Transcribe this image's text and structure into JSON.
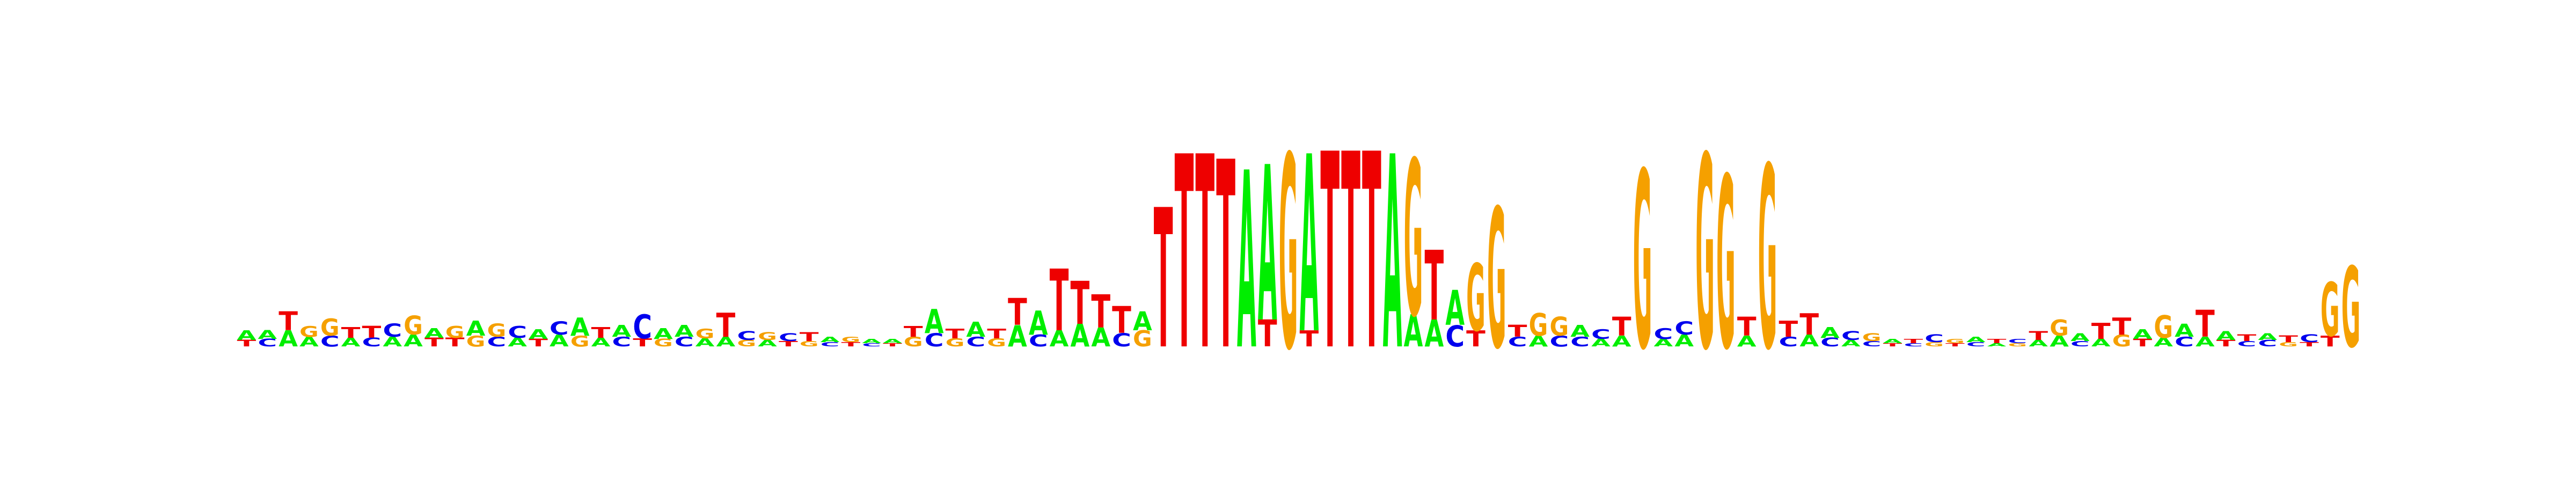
{
  "colors": {
    "A": "#00ee00",
    "C": "#0000ee",
    "G": "#f5a000",
    "T": "#ee0000"
  },
  "sequence_logo": {
    "columns": [
      [
        [
          "A",
          0.18
        ],
        [
          "T",
          0.12
        ]
      ],
      [
        [
          "A",
          0.16
        ],
        [
          "C",
          0.14
        ]
      ],
      [
        [
          "T",
          0.35
        ],
        [
          "A",
          0.3
        ]
      ],
      [
        [
          "G",
          0.2
        ],
        [
          "A",
          0.18
        ]
      ],
      [
        [
          "G",
          0.32
        ],
        [
          "C",
          0.2
        ]
      ],
      [
        [
          "T",
          0.2
        ],
        [
          "A",
          0.16
        ]
      ],
      [
        [
          "T",
          0.22
        ],
        [
          "C",
          0.16
        ]
      ],
      [
        [
          "C",
          0.25
        ],
        [
          "A",
          0.18
        ]
      ],
      [
        [
          "G",
          0.35
        ],
        [
          "A",
          0.22
        ]
      ],
      [
        [
          "A",
          0.18
        ],
        [
          "T",
          0.16
        ]
      ],
      [
        [
          "G",
          0.22
        ],
        [
          "T",
          0.16
        ]
      ],
      [
        [
          "A",
          0.28
        ],
        [
          "G",
          0.2
        ]
      ],
      [
        [
          "G",
          0.25
        ],
        [
          "C",
          0.18
        ]
      ],
      [
        [
          "C",
          0.22
        ],
        [
          "A",
          0.16
        ]
      ],
      [
        [
          "A",
          0.18
        ],
        [
          "T",
          0.14
        ]
      ],
      [
        [
          "C",
          0.25
        ],
        [
          "A",
          0.22
        ]
      ],
      [
        [
          "A",
          0.34
        ],
        [
          "G",
          0.2
        ]
      ],
      [
        [
          "T",
          0.2
        ],
        [
          "A",
          0.16
        ]
      ],
      [
        [
          "A",
          0.22
        ],
        [
          "C",
          0.18
        ]
      ],
      [
        [
          "C",
          0.45
        ],
        [
          "T",
          0.15
        ]
      ],
      [
        [
          "A",
          0.2
        ],
        [
          "G",
          0.14
        ]
      ],
      [
        [
          "A",
          0.22
        ],
        [
          "C",
          0.18
        ]
      ],
      [
        [
          "G",
          0.18
        ],
        [
          "A",
          0.15
        ]
      ],
      [
        [
          "T",
          0.45
        ],
        [
          "A",
          0.18
        ]
      ],
      [
        [
          "C",
          0.16
        ],
        [
          "G",
          0.12
        ]
      ],
      [
        [
          "G",
          0.14
        ],
        [
          "A",
          0.12
        ]
      ],
      [
        [
          "C",
          0.14
        ],
        [
          "T",
          0.1
        ]
      ],
      [
        [
          "T",
          0.16
        ],
        [
          "G",
          0.1
        ]
      ],
      [
        [
          "A",
          0.1
        ],
        [
          "C",
          0.08
        ]
      ],
      [
        [
          "G",
          0.1
        ],
        [
          "T",
          0.08
        ]
      ],
      [
        [
          "A",
          0.08
        ],
        [
          "C",
          0.06
        ]
      ],
      [
        [
          "A",
          0.08
        ],
        [
          "T",
          0.06
        ]
      ],
      [
        [
          "T",
          0.2
        ],
        [
          "G",
          0.18
        ]
      ],
      [
        [
          "A",
          0.45
        ],
        [
          "C",
          0.25
        ]
      ],
      [
        [
          "T",
          0.18
        ],
        [
          "G",
          0.15
        ]
      ],
      [
        [
          "A",
          0.28
        ],
        [
          "C",
          0.18
        ]
      ],
      [
        [
          "T",
          0.18
        ],
        [
          "G",
          0.15
        ]
      ],
      [
        [
          "A",
          0.4
        ],
        [
          "T",
          0.5
        ]
      ],
      [
        [
          "A",
          0.45
        ],
        [
          "C",
          0.22
        ]
      ],
      [
        [
          "T",
          1.15
        ],
        [
          "A",
          0.3
        ]
      ],
      [
        [
          "A",
          0.42
        ],
        [
          "T",
          0.8
        ]
      ],
      [
        [
          "T",
          0.62
        ],
        [
          "A",
          0.35
        ]
      ],
      [
        [
          "T",
          0.5
        ],
        [
          "C",
          0.25
        ]
      ],
      [
        [
          "A",
          0.35
        ],
        [
          "G",
          0.3
        ]
      ],
      [
        [
          "T",
          2.6
        ]
      ],
      [
        [
          "T",
          3.6
        ]
      ],
      [
        [
          "T",
          3.6
        ]
      ],
      [
        [
          "T",
          3.5
        ]
      ],
      [
        [
          "A",
          3.3
        ]
      ],
      [
        [
          "T",
          0.5
        ],
        [
          "A",
          2.9
        ]
      ],
      [
        [
          "G",
          3.6
        ]
      ],
      [
        [
          "T",
          0.3
        ],
        [
          "A",
          3.3
        ]
      ],
      [
        [
          "T",
          3.65
        ]
      ],
      [
        [
          "T",
          3.65
        ]
      ],
      [
        [
          "T",
          3.65
        ]
      ],
      [
        [
          "A",
          3.6
        ]
      ],
      [
        [
          "A",
          0.6
        ],
        [
          "G",
          2.9
        ]
      ],
      [
        [
          "A",
          0.5
        ],
        [
          "T",
          1.3
        ]
      ],
      [
        [
          "C",
          0.4
        ],
        [
          "A",
          0.65
        ]
      ],
      [
        [
          "T",
          0.3
        ],
        [
          "G",
          1.25
        ]
      ],
      [
        [
          "G",
          2.6
        ]
      ],
      [
        [
          "T",
          0.22
        ],
        [
          "C",
          0.18
        ]
      ],
      [
        [
          "A",
          0.2
        ],
        [
          "G",
          0.42
        ]
      ],
      [
        [
          "C",
          0.2
        ],
        [
          "G",
          0.35
        ]
      ],
      [
        [
          "A",
          0.22
        ],
        [
          "C",
          0.18
        ]
      ],
      [
        [
          "C",
          0.18
        ],
        [
          "A",
          0.14
        ]
      ],
      [
        [
          "A",
          0.2
        ],
        [
          "T",
          0.35
        ]
      ],
      [
        [
          "G",
          3.3
        ]
      ],
      [
        [
          "C",
          0.2
        ],
        [
          "A",
          0.14
        ]
      ],
      [
        [
          "C",
          0.25
        ],
        [
          "A",
          0.22
        ]
      ],
      [
        [
          "G",
          3.6
        ]
      ],
      [
        [
          "G",
          3.2
        ]
      ],
      [
        [
          "T",
          0.35
        ],
        [
          "A",
          0.2
        ]
      ],
      [
        [
          "G",
          3.4
        ]
      ],
      [
        [
          "T",
          0.3
        ],
        [
          "C",
          0.18
        ]
      ],
      [
        [
          "T",
          0.4
        ],
        [
          "A",
          0.22
        ]
      ],
      [
        [
          "A",
          0.2
        ],
        [
          "C",
          0.16
        ]
      ],
      [
        [
          "C",
          0.16
        ],
        [
          "A",
          0.12
        ]
      ],
      [
        [
          "G",
          0.14
        ],
        [
          "C",
          0.1
        ]
      ],
      [
        [
          "A",
          0.08
        ],
        [
          "T",
          0.06
        ]
      ],
      [
        [
          "T",
          0.08
        ],
        [
          "C",
          0.06
        ]
      ],
      [
        [
          "C",
          0.14
        ],
        [
          "G",
          0.08
        ]
      ],
      [
        [
          "G",
          0.08
        ],
        [
          "T",
          0.06
        ]
      ],
      [
        [
          "A",
          0.1
        ],
        [
          "C",
          0.08
        ]
      ],
      [
        [
          "T",
          0.08
        ],
        [
          "A",
          0.06
        ]
      ],
      [
        [
          "C",
          0.08
        ],
        [
          "G",
          0.06
        ]
      ],
      [
        [
          "T",
          0.16
        ],
        [
          "A",
          0.12
        ]
      ],
      [
        [
          "A",
          0.2
        ],
        [
          "G",
          0.3
        ]
      ],
      [
        [
          "A",
          0.14
        ],
        [
          "C",
          0.1
        ]
      ],
      [
        [
          "T",
          0.3
        ],
        [
          "A",
          0.14
        ]
      ],
      [
        [
          "G",
          0.22
        ],
        [
          "T",
          0.32
        ]
      ],
      [
        [
          "A",
          0.18
        ],
        [
          "T",
          0.14
        ]
      ],
      [
        [
          "A",
          0.16
        ],
        [
          "G",
          0.42
        ]
      ],
      [
        [
          "A",
          0.24
        ],
        [
          "C",
          0.18
        ]
      ],
      [
        [
          "A",
          0.18
        ],
        [
          "T",
          0.5
        ]
      ],
      [
        [
          "A",
          0.16
        ],
        [
          "T",
          0.12
        ]
      ],
      [
        [
          "T",
          0.12
        ],
        [
          "C",
          0.1
        ]
      ],
      [
        [
          "C",
          0.12
        ],
        [
          "A",
          0.12
        ]
      ],
      [
        [
          "T",
          0.12
        ],
        [
          "G",
          0.08
        ]
      ],
      [
        [
          "C",
          0.14
        ],
        [
          "T",
          0.08
        ]
      ],
      [
        [
          "T",
          0.2
        ],
        [
          "G",
          1.0
        ]
      ],
      [
        [
          "G",
          1.5
        ]
      ]
    ]
  }
}
